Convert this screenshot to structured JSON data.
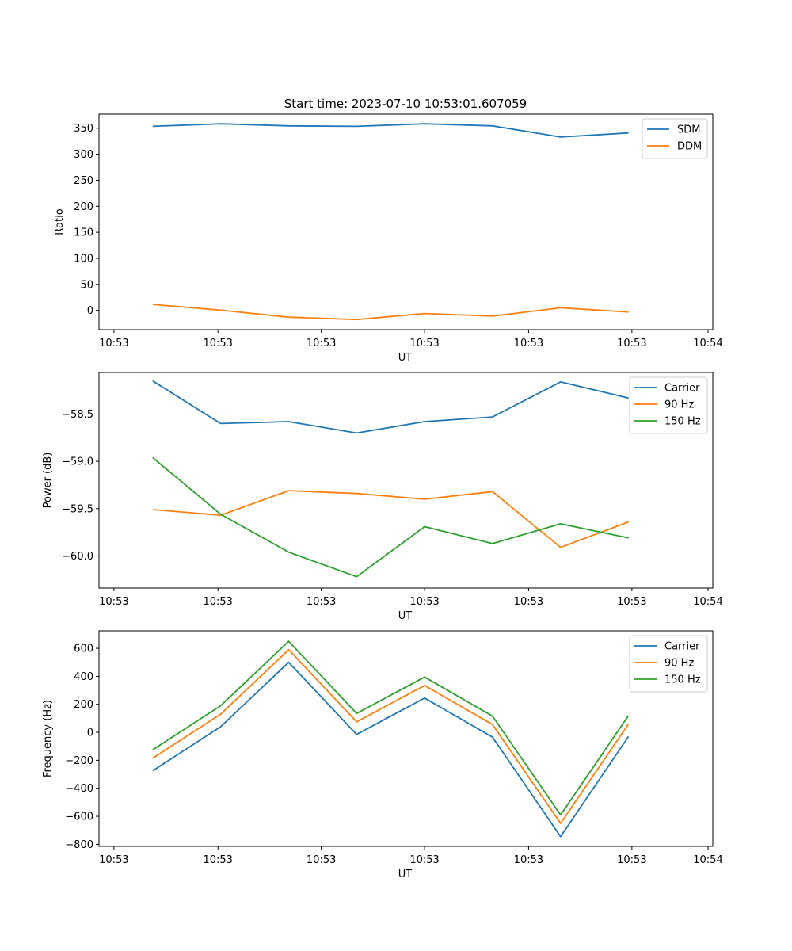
{
  "figure_title": "Start time: 2023-07-10 10:53:01.607059",
  "chart_data": [
    {
      "type": "line",
      "xlabel": "UT",
      "ylabel": "Ratio",
      "x": [
        1,
        2,
        3,
        4,
        5,
        6,
        7,
        8
      ],
      "xlim": [
        0.21,
        9.24
      ],
      "xticks": [
        0.43,
        1.96,
        3.48,
        5.0,
        6.53,
        8.05,
        9.17
      ],
      "xtick_labels": [
        "10:53",
        "10:53",
        "10:53",
        "10:53",
        "10:53",
        "10:53",
        "10:54"
      ],
      "ylim": [
        -37,
        377
      ],
      "yticks": [
        0,
        50,
        100,
        150,
        200,
        250,
        300,
        350
      ],
      "ytick_labels": [
        "0",
        "50",
        "100",
        "150",
        "200",
        "250",
        "300",
        "350"
      ],
      "legend": "upper right",
      "series": [
        {
          "name": "SDM",
          "color": "#1f77b4",
          "values": [
            353.5,
            358.5,
            354.5,
            353.5,
            358.5,
            354.5,
            333,
            341
          ]
        },
        {
          "name": "DDM",
          "color": "#ff7f0e",
          "values": [
            11.5,
            0.5,
            -13,
            -17.5,
            -6,
            -11,
            5,
            -3
          ]
        }
      ]
    },
    {
      "type": "line",
      "xlabel": "UT",
      "ylabel": "Power (dB)",
      "x": [
        1,
        2,
        3,
        4,
        5,
        6,
        7,
        8
      ],
      "xlim": [
        0.21,
        9.24
      ],
      "xticks": [
        0.43,
        1.96,
        3.48,
        5.0,
        6.53,
        8.05,
        9.17
      ],
      "xtick_labels": [
        "10:53",
        "10:53",
        "10:53",
        "10:53",
        "10:53",
        "10:53",
        "10:54"
      ],
      "ylim": [
        -60.34,
        -58.06
      ],
      "yticks": [
        -58.5,
        -59.0,
        -59.5,
        -60.0
      ],
      "ytick_labels": [
        "−58.5",
        "−59.0",
        "−59.5",
        "−60.0"
      ],
      "legend": "upper right",
      "series": [
        {
          "name": "Carrier",
          "color": "#1f77b4",
          "values": [
            -58.15,
            -58.6,
            -58.58,
            -58.7,
            -58.58,
            -58.53,
            -58.16,
            -58.33
          ]
        },
        {
          "name": "90 Hz",
          "color": "#ff7f0e",
          "values": [
            -59.51,
            -59.57,
            -59.31,
            -59.34,
            -59.4,
            -59.32,
            -59.91,
            -59.64
          ]
        },
        {
          "name": "150 Hz",
          "color": "#2ca02c",
          "values": [
            -58.96,
            -59.56,
            -59.96,
            -60.22,
            -59.69,
            -59.87,
            -59.66,
            -59.81
          ]
        }
      ]
    },
    {
      "type": "line",
      "xlabel": "UT",
      "ylabel": "Frequency (Hz)",
      "x": [
        1,
        2,
        3,
        4,
        5,
        6,
        7,
        8
      ],
      "xlim": [
        0.21,
        9.24
      ],
      "xticks": [
        0.43,
        1.96,
        3.48,
        5.0,
        6.53,
        8.05,
        9.17
      ],
      "xtick_labels": [
        "10:53",
        "10:53",
        "10:53",
        "10:53",
        "10:53",
        "10:53",
        "10:54"
      ],
      "ylim": [
        -815,
        725
      ],
      "yticks": [
        600,
        400,
        200,
        0,
        -200,
        -400,
        -600,
        -800
      ],
      "ytick_labels": [
        "600",
        "400",
        "200",
        "0",
        "−200",
        "−400",
        "−600",
        "−800"
      ],
      "legend": "upper right",
      "series": [
        {
          "name": "Carrier",
          "color": "#1f77b4",
          "values": [
            -275,
            40,
            500,
            -15,
            245,
            -35,
            -745,
            -30
          ]
        },
        {
          "name": "90 Hz",
          "color": "#ff7f0e",
          "values": [
            -185,
            130,
            590,
            75,
            335,
            55,
            -650,
            60
          ]
        },
        {
          "name": "150 Hz",
          "color": "#2ca02c",
          "values": [
            -125,
            190,
            650,
            135,
            395,
            115,
            -590,
            120
          ]
        }
      ]
    }
  ]
}
